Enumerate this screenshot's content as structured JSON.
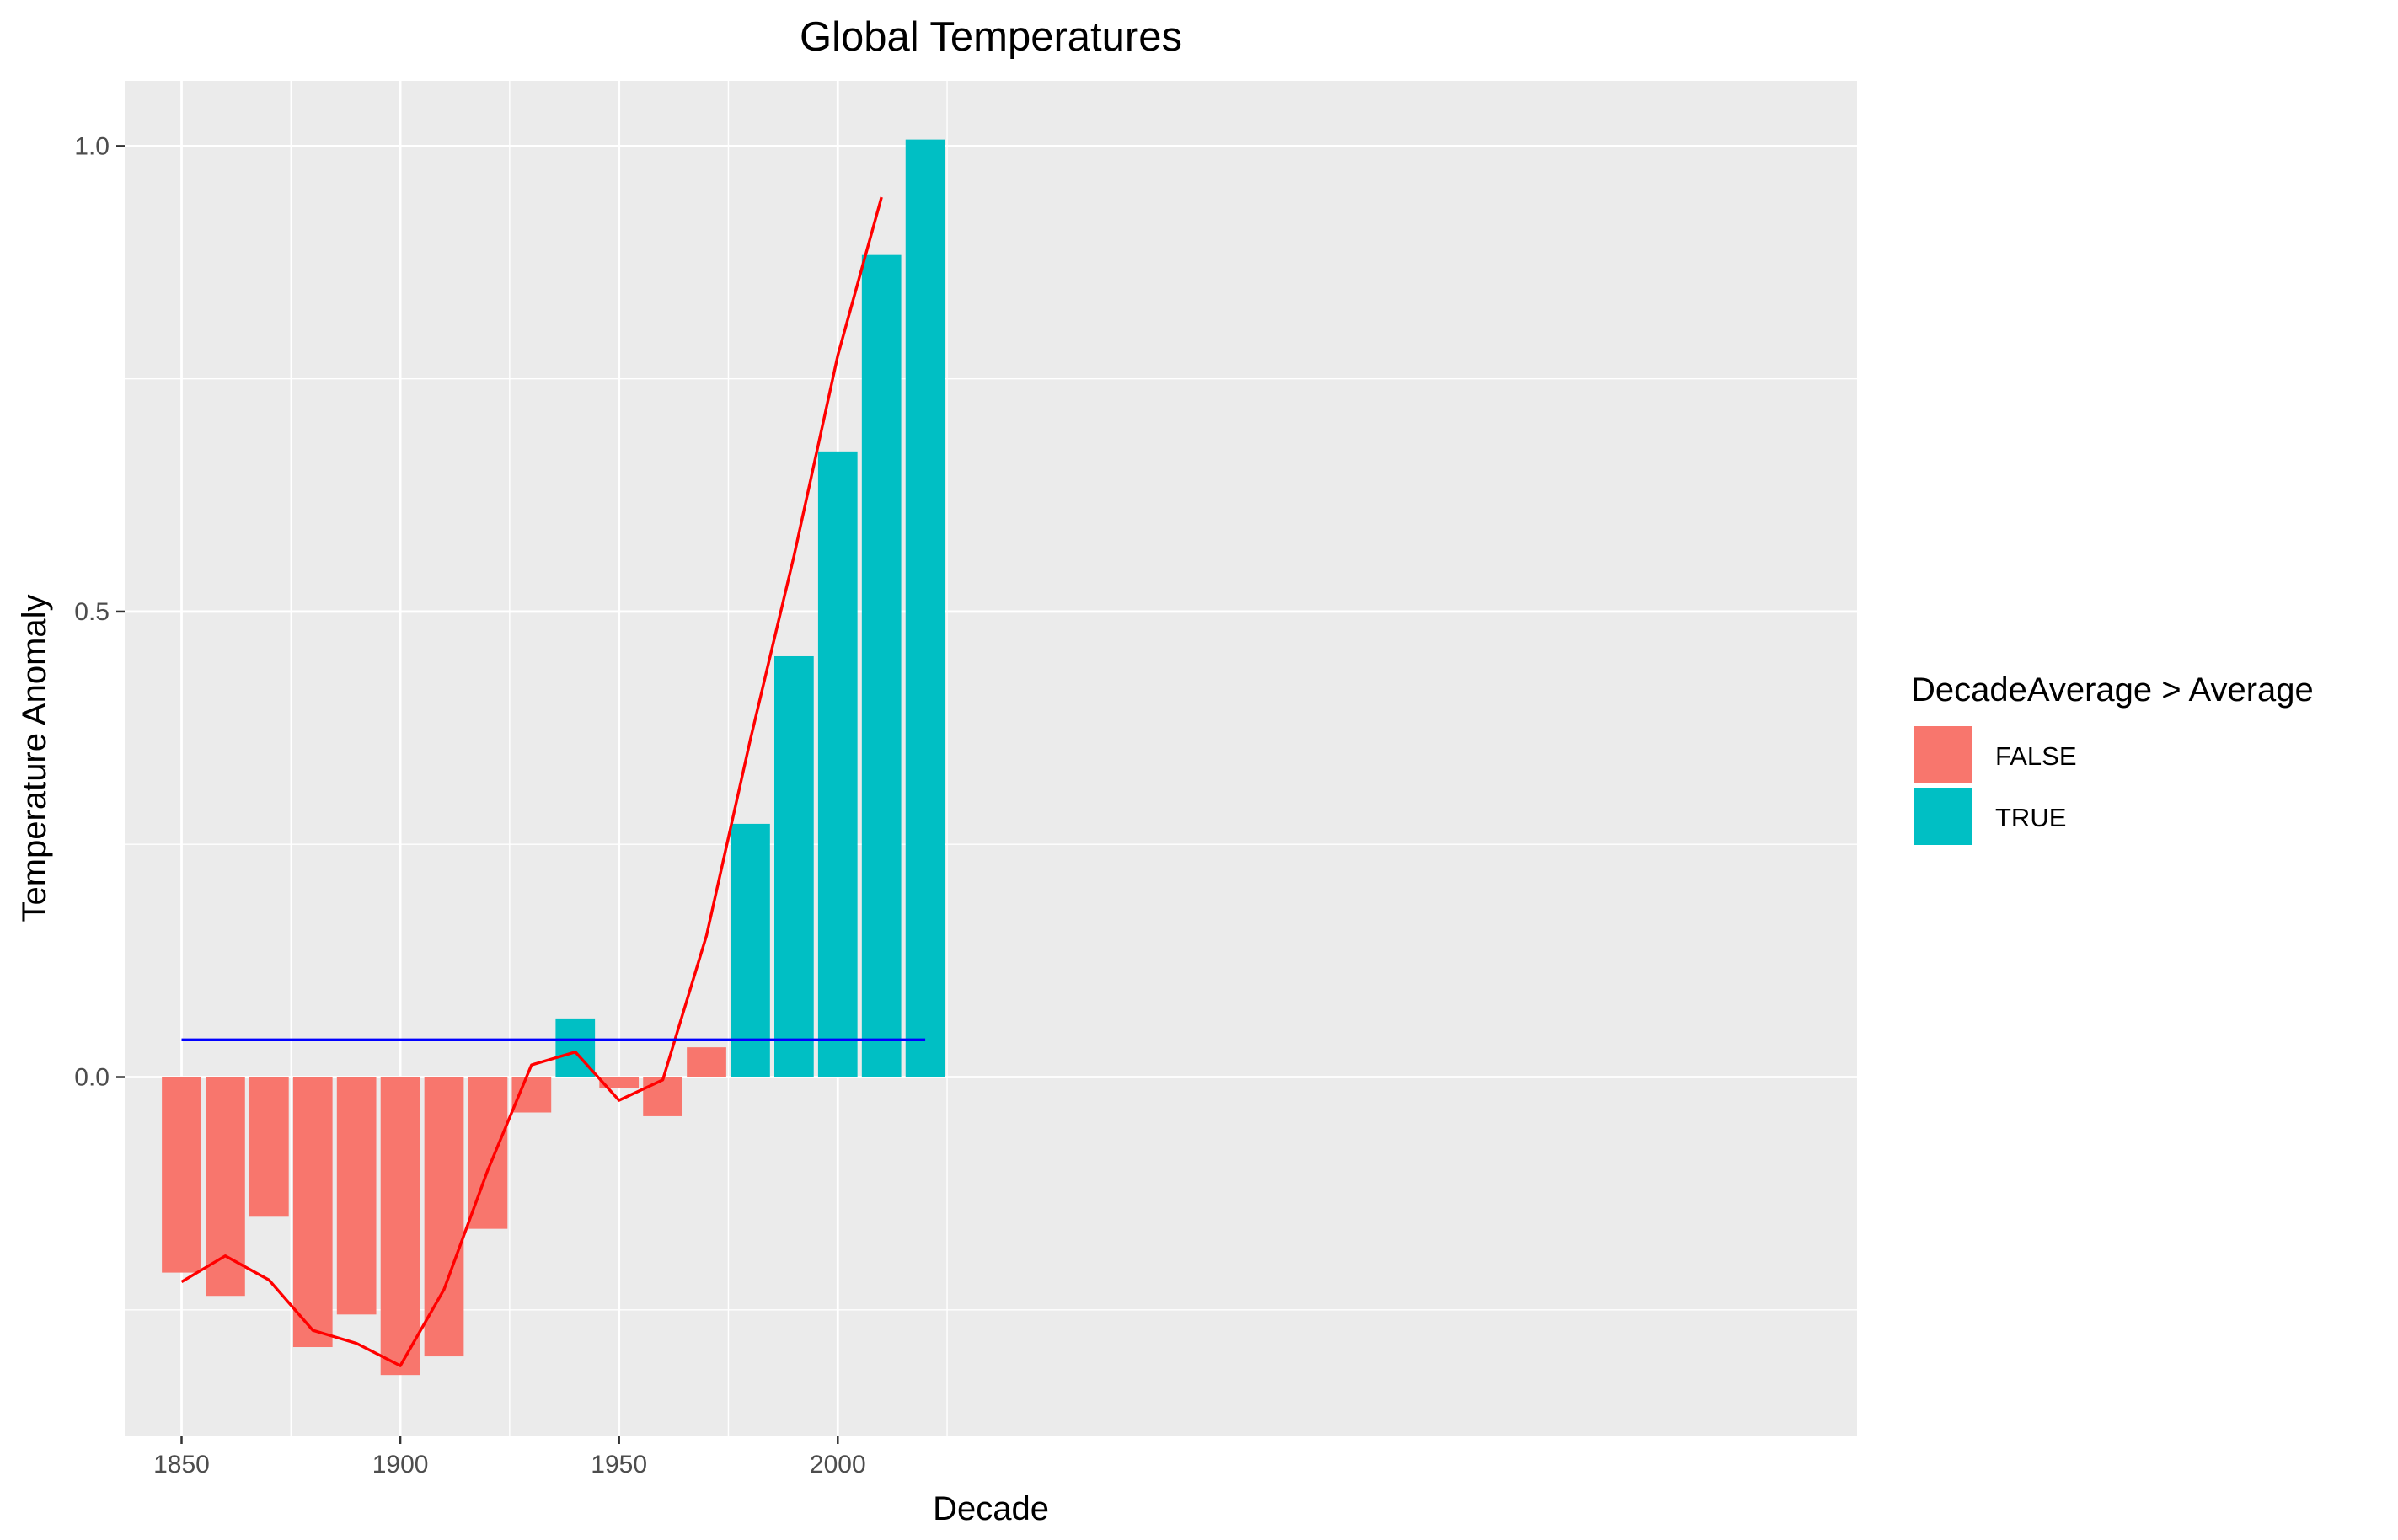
{
  "chart_data": {
    "type": "bar",
    "title": "Global Temperatures",
    "xlabel": "Decade",
    "ylabel": "Temperature Anomaly",
    "xlim": [
      1837,
      2233
    ],
    "ylim": [
      -0.385,
      1.07
    ],
    "x_ticks": [
      1850,
      1900,
      1950,
      2000
    ],
    "y_ticks": [
      0.0,
      0.5,
      1.0
    ],
    "y_tick_labels": [
      "0.0",
      "0.5",
      "1.0"
    ],
    "grid": true,
    "legend_position": "right",
    "legend": {
      "title": "DecadeAverage > Average",
      "entries": [
        {
          "label": "FALSE",
          "color": "#F8766D"
        },
        {
          "label": "TRUE",
          "color": "#00BFC4"
        }
      ]
    },
    "categories": [
      1850,
      1860,
      1870,
      1880,
      1890,
      1900,
      1910,
      1920,
      1930,
      1940,
      1950,
      1960,
      1970,
      1980,
      1990,
      2000,
      2010,
      2020
    ],
    "values": [
      -0.21,
      -0.235,
      -0.15,
      -0.29,
      -0.255,
      -0.32,
      -0.3,
      -0.163,
      -0.038,
      0.063,
      -0.012,
      -0.042,
      0.032,
      0.272,
      0.452,
      0.672,
      0.883,
      1.007
    ],
    "above_average": [
      false,
      false,
      false,
      false,
      false,
      false,
      false,
      false,
      false,
      true,
      false,
      false,
      false,
      true,
      true,
      true,
      true,
      true
    ],
    "overlays": [
      {
        "type": "line",
        "color": "#FF0000",
        "x": [
          1850,
          1860,
          1870,
          1880,
          1890,
          1900,
          1910,
          1920,
          1930,
          1940,
          1950,
          1960,
          1970,
          1980,
          1990,
          2000,
          2010
        ],
        "y": [
          -0.22,
          -0.192,
          -0.218,
          -0.272,
          -0.286,
          -0.31,
          -0.228,
          -0.1,
          0.013,
          0.027,
          -0.025,
          -0.003,
          0.152,
          0.362,
          0.56,
          0.775,
          0.945
        ]
      },
      {
        "type": "line",
        "color": "#0000FF",
        "x": [
          1850,
          2020
        ],
        "y": [
          0.04,
          0.04
        ]
      }
    ]
  }
}
